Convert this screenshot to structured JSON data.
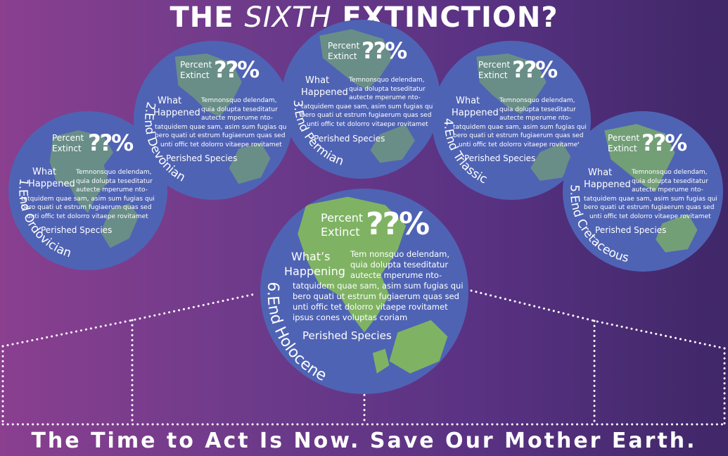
{
  "title": {
    "part1": "THE ",
    "part2": "SIXTH",
    "part3": " EXTINCTION?"
  },
  "footer": "The Time to Act Is Now. Save Our Mother Earth.",
  "colors": {
    "globe": "#4f63b4",
    "land": "#7fb363",
    "text": "#ffffff"
  },
  "globes": [
    {
      "id": "g1",
      "label": "1.End Ordovician",
      "percent_l1": "Percent",
      "percent_l2": "Extinct",
      "value": "??%",
      "what_l1": "What",
      "what_l2": "Happened",
      "text_lines": [
        "Temnonsquo delendam,",
        "quia dolupta teseditatur",
        "autecte mperume nto-",
        "tatquidem quae sam, asim sum fugias qui",
        "bero quati ut estrum fugiaerum quas sed",
        "unti offic tet dolorro vitaepe rovitamet"
      ],
      "perished": "Perished Species"
    },
    {
      "id": "g2",
      "label": "2.End Devonian",
      "percent_l1": "Percent",
      "percent_l2": "Extinct",
      "value": "??%",
      "what_l1": "What",
      "what_l2": "Happened",
      "text_lines": [
        "Temnonsquo delendam,",
        "quia dolupta teseditatur",
        "autecte mperume nto-",
        "tatquidem quae sam, asim sum fugias qui",
        "bero quati ut estrum fugiaerum quas sed",
        "unti offic tet dolorro vitaepe rovitamet"
      ],
      "perished": "Perished Species"
    },
    {
      "id": "g3",
      "label": "3.End Permian",
      "percent_l1": "Percent",
      "percent_l2": "Extinct",
      "value": "??%",
      "what_l1": "What",
      "what_l2": "Happened",
      "text_lines": [
        "Temnonsquo delendam,",
        "quia dolupta teseditatur",
        "autecte mperume nto-",
        "tatquidem quae sam, asim sum fugias qui",
        "bero quati ut estrum fugiaerum quas sed",
        "unti offic tet dolorro vitaepe rovitamet"
      ],
      "perished": "Perished Species"
    },
    {
      "id": "g4",
      "label": "4.End Triassic",
      "percent_l1": "Percent",
      "percent_l2": "Extinct",
      "value": "??%",
      "what_l1": "What",
      "what_l2": "Happened",
      "text_lines": [
        "Temnonsquo delendam,",
        "quia dolupta teseditatur",
        "autecte mperume nto-",
        "tatquidem quae sam, asim sum fugias qui",
        "bero quati ut estrum fugiaerum quas sed",
        "unti offic tet dolorro vitaepe rovitamet"
      ],
      "perished": "Perished Species"
    },
    {
      "id": "g5",
      "label": "5.End Cretaceous",
      "percent_l1": "Percent",
      "percent_l2": "Extinct",
      "value": "??%",
      "what_l1": "What",
      "what_l2": "Happened",
      "text_lines": [
        "Temnonsquo delendam,",
        "quia dolupta teseditatur",
        "autecte mperume nto-",
        "tatquidem quae sam, asim sum fugias qui",
        "bero quati ut estrum fugiaerum quas sed",
        "unti offic tet dolorro vitaepe rovitamet"
      ],
      "perished": "Perished Species"
    },
    {
      "id": "g6",
      "label": "6.End Holocene",
      "percent_l1": "Percent",
      "percent_l2": "Extinct",
      "value": "??%",
      "what_l1": "What’s",
      "what_l2": "Happening",
      "text_lines": [
        "Tem nonsquo delendam,",
        "quia dolupta teseditatur",
        "autecte mperume nto-",
        "tatquidem quae sam, asim sum fugias qui",
        "bero quati ut estrum fugiaerum quas sed",
        "unti offic tet dolorro vitaepe rovitamet",
        "ipsus cones voluptas coriam"
      ],
      "perished": "Perished Species"
    }
  ]
}
